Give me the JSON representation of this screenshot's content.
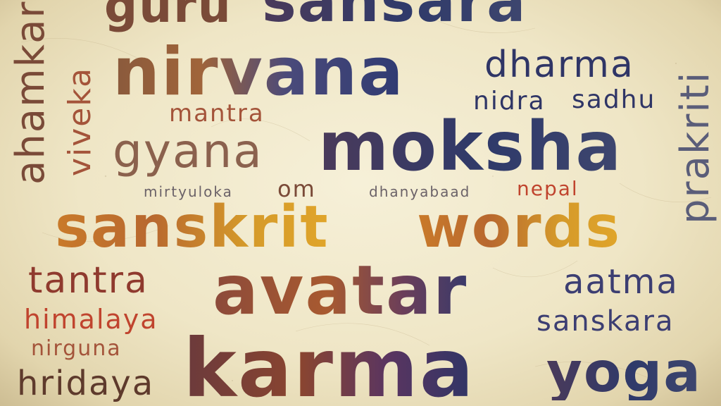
{
  "poster": {
    "words": {
      "ahamkara": "ahamkara",
      "viveka": "viveka",
      "guru": "guru",
      "sansara": "sansara",
      "nirvana": "nirvana",
      "dharma": "dharma",
      "prakriti": "prakriti",
      "nidra": "nidra",
      "sadhu": "sadhu",
      "mantra": "mantra",
      "gyana": "gyana",
      "moksha": "moksha",
      "mirtyuloka": "mirtyuloka",
      "om": "om",
      "dhanyabaad": "dhanyabaad",
      "nepal": "nepal",
      "sanskrit": "sanskrit",
      "words": "words",
      "tantra": "tantra",
      "avatar": "avatar",
      "aatma": "aatma",
      "himalaya": "himalaya",
      "sanskara": "sanskara",
      "nirguna": "nirguna",
      "hridaya": "hridaya",
      "karma": "karma",
      "yoga": "yoga"
    },
    "colors": {
      "background": "#efe6c6",
      "navy": "#2f3566",
      "brown": "#7a4a38",
      "orange": "#d18a23",
      "red": "#c0442e"
    }
  }
}
